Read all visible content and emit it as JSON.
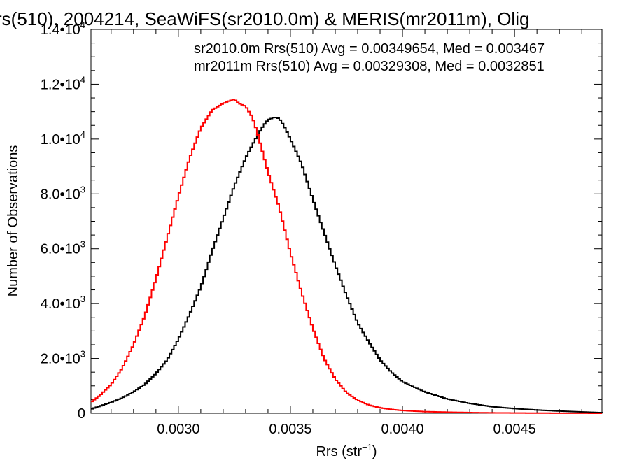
{
  "chart_data": {
    "type": "line",
    "title": "rs(510), 2004214, SeaWiFS(sr2010.0m) & MERIS(mr2011m), Olig",
    "xlabel": "Rrs (str",
    "xlabel_sup": "−1",
    "xlabel_close": ")",
    "ylabel": "Number of Observations",
    "xlim": [
      0.00261,
      0.00489
    ],
    "ylim": [
      0,
      14000
    ],
    "x_ticks": [
      {
        "value": 0.003,
        "label": "0.0030"
      },
      {
        "value": 0.0035,
        "label": "0.0035"
      },
      {
        "value": 0.004,
        "label": "0.0040"
      },
      {
        "value": 0.0045,
        "label": "0.0045"
      }
    ],
    "y_ticks": [
      {
        "value": 0,
        "mantissa": "0",
        "exp": ""
      },
      {
        "value": 2000,
        "mantissa": "2.0•10",
        "exp": "3"
      },
      {
        "value": 4000,
        "mantissa": "4.0•10",
        "exp": "3"
      },
      {
        "value": 6000,
        "mantissa": "6.0•10",
        "exp": "3"
      },
      {
        "value": 8000,
        "mantissa": "8.0•10",
        "exp": "3"
      },
      {
        "value": 10000,
        "mantissa": "1.0•10",
        "exp": "4"
      },
      {
        "value": 12000,
        "mantissa": "1.2•10",
        "exp": "4"
      },
      {
        "value": 14000,
        "mantissa": "1.4•10",
        "exp": "4"
      }
    ],
    "annotations": [
      {
        "text": "sr2010.0m Rrs(510) Avg = 0.00349654, Med = 0.003467",
        "color": "#000000"
      },
      {
        "text": "mr2011m Rrs(510) Avg = 0.00329308, Med = 0.0032851",
        "color": "#ff0000"
      }
    ],
    "series": [
      {
        "color": "#000000",
        "x": [
          0.00261,
          0.00265,
          0.0027,
          0.00275,
          0.0028,
          0.00285,
          0.0029,
          0.00295,
          0.003,
          0.00305,
          0.0031,
          0.00315,
          0.0032,
          0.00325,
          0.0033,
          0.00335,
          0.00338,
          0.0034,
          0.00343,
          0.00345,
          0.00347,
          0.0035,
          0.00355,
          0.0036,
          0.00365,
          0.0037,
          0.00375,
          0.0038,
          0.00385,
          0.0039,
          0.00395,
          0.004,
          0.0041,
          0.0042,
          0.0043,
          0.0044,
          0.0045,
          0.0046,
          0.0047,
          0.0048,
          0.00489
        ],
        "y": [
          150,
          260,
          400,
          560,
          780,
          1050,
          1450,
          1950,
          2700,
          3600,
          4600,
          5900,
          7100,
          8300,
          9300,
          10100,
          10500,
          10700,
          10800,
          10750,
          10500,
          10000,
          9100,
          7800,
          6600,
          5400,
          4300,
          3300,
          2600,
          1950,
          1500,
          1150,
          780,
          520,
          360,
          240,
          170,
          120,
          80,
          50,
          20
        ]
      },
      {
        "color": "#ff0000",
        "x": [
          0.00261,
          0.00265,
          0.0027,
          0.00275,
          0.0028,
          0.00285,
          0.0029,
          0.00295,
          0.003,
          0.00305,
          0.0031,
          0.00315,
          0.0032,
          0.00323,
          0.00325,
          0.00327,
          0.0033,
          0.00333,
          0.00335,
          0.0034,
          0.00345,
          0.0035,
          0.00355,
          0.0036,
          0.00365,
          0.0037,
          0.00375,
          0.0038,
          0.00385,
          0.0039,
          0.00395,
          0.004,
          0.0041,
          0.0042,
          0.0043,
          0.0044,
          0.0045,
          0.0046,
          0.0047,
          0.0048,
          0.00489
        ],
        "y": [
          400,
          650,
          1050,
          1650,
          2500,
          3550,
          4900,
          6400,
          7900,
          9300,
          10400,
          11050,
          11300,
          11400,
          11450,
          11300,
          11200,
          10800,
          10300,
          8800,
          7500,
          5850,
          4400,
          3100,
          2000,
          1250,
          750,
          480,
          300,
          200,
          140,
          100,
          60,
          40,
          25,
          15,
          10,
          6,
          4,
          2,
          1
        ]
      }
    ]
  }
}
